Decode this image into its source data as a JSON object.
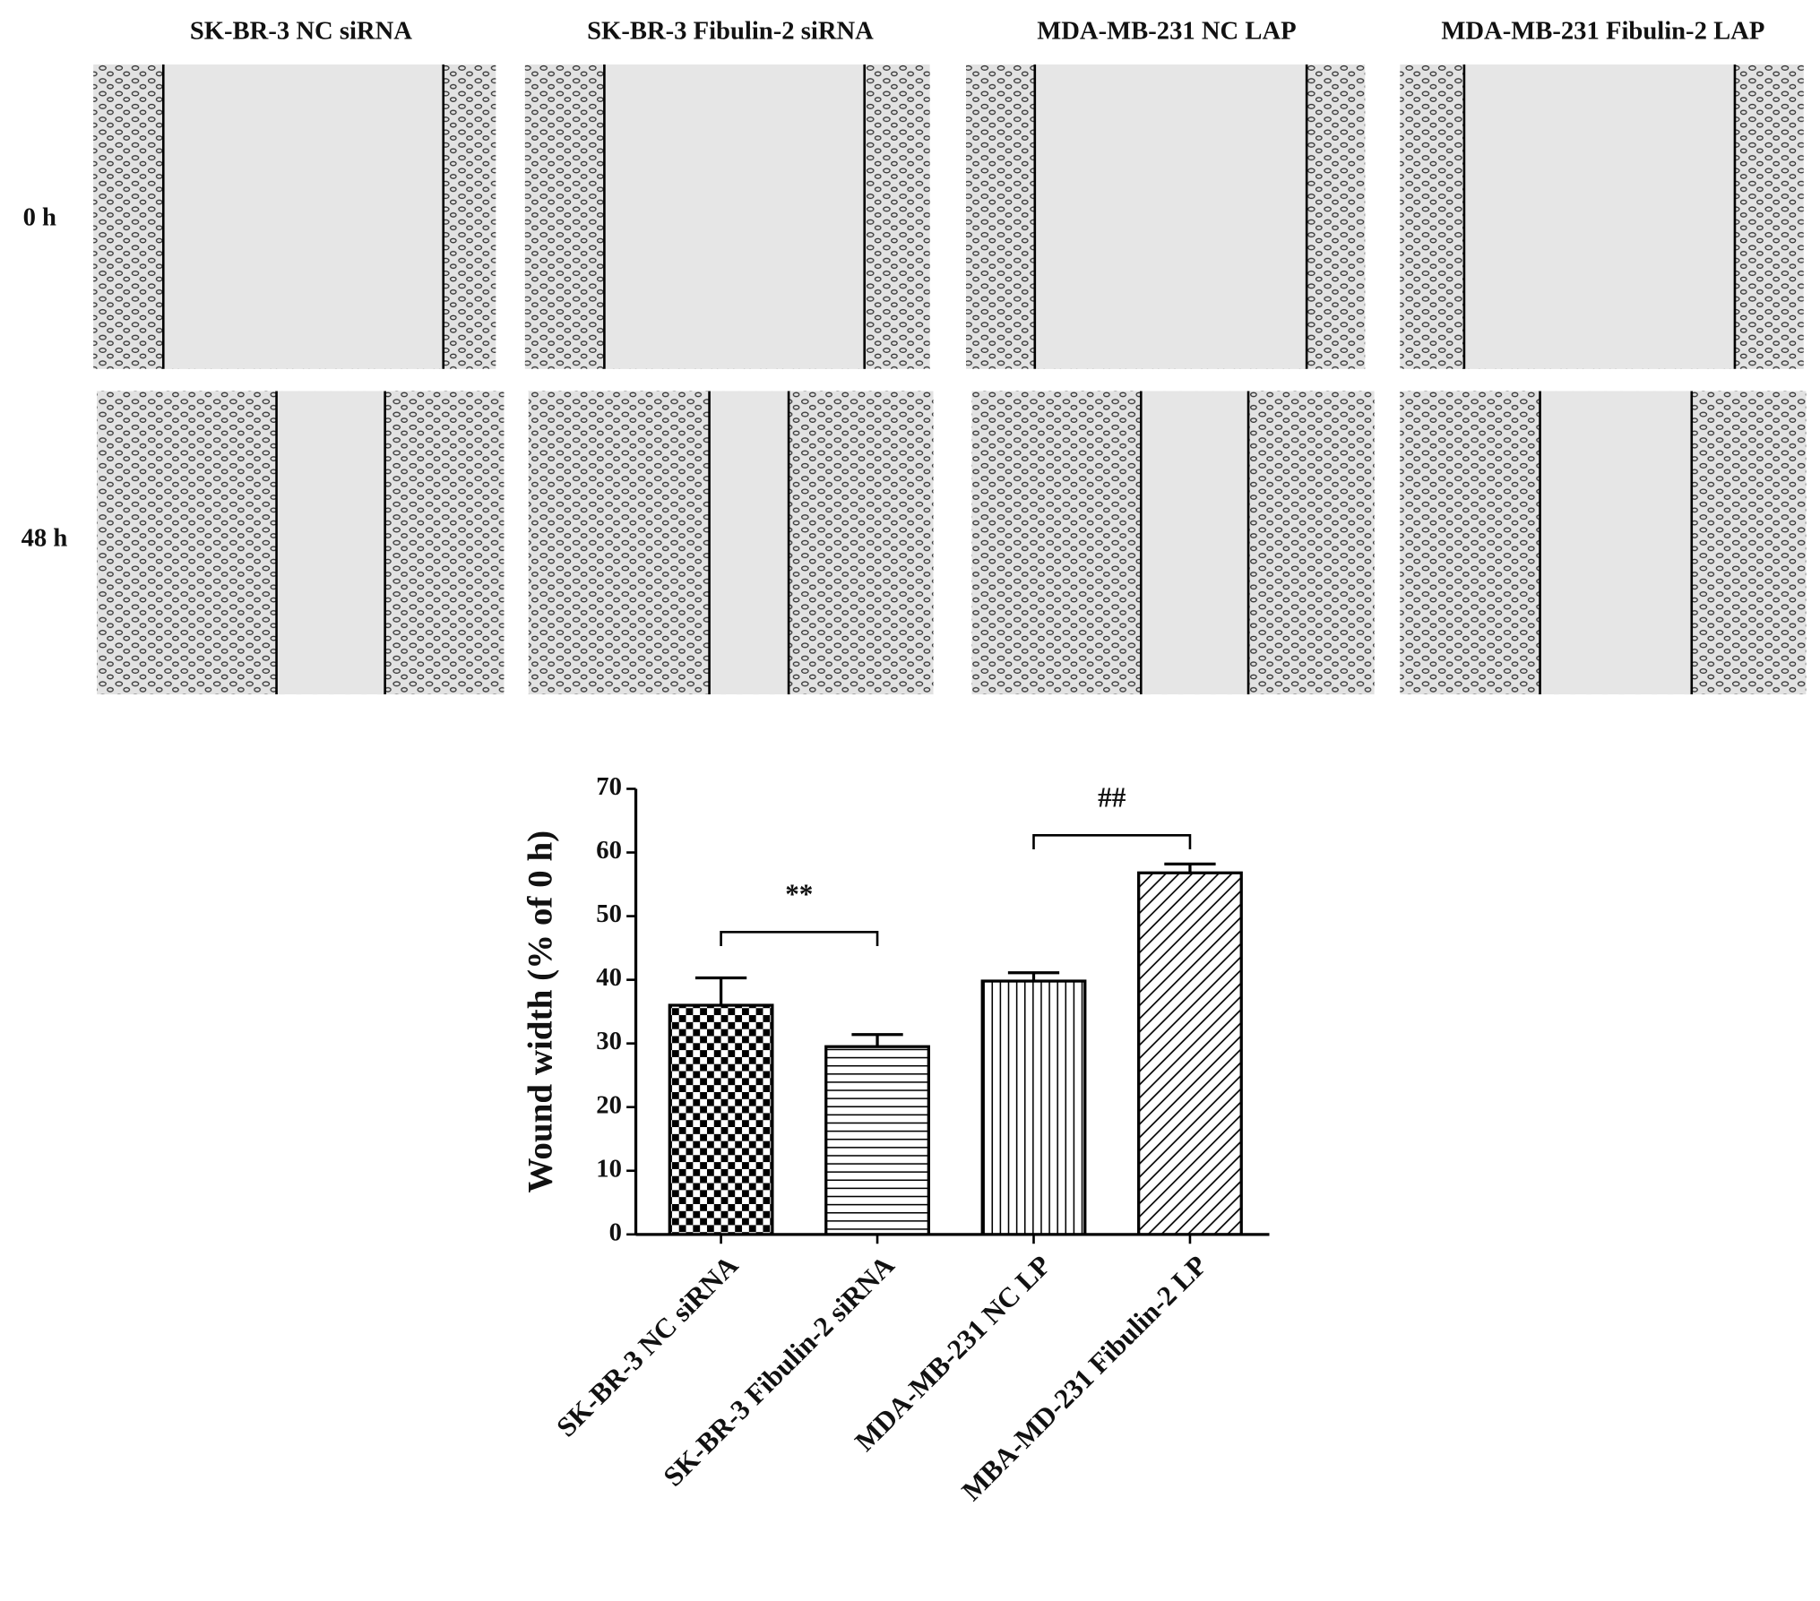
{
  "figure": {
    "column_labels": [
      "SK-BR-3 NC siRNA",
      "SK-BR-3 Fibulin-2 siRNA",
      "MDA-MB-231 NC LAP",
      "MDA-MB-231 Fibulin-2 LAP"
    ],
    "row_labels": [
      "0 h",
      "48 h"
    ]
  },
  "chart_data": {
    "type": "bar",
    "ylabel": "Wound width (% of 0 h)",
    "categories": [
      "SK-BR-3 NC siRNA",
      "SK-BR-3 Fibulin-2 siRNA",
      "MDA-MB-231 NC LP",
      "MBA-MD-231 Fibulin-2 LP"
    ],
    "values": [
      36,
      29.5,
      39.8,
      56.8
    ],
    "errors": [
      4.3,
      1.9,
      1.3,
      1.4
    ],
    "patterns": [
      "checker",
      "horizontal",
      "vertical",
      "diagonal"
    ],
    "color": "#000000",
    "ylim": [
      0,
      70
    ],
    "yticks": [
      0,
      10,
      20,
      30,
      40,
      50,
      60,
      70
    ],
    "annotations": [
      {
        "text": "**",
        "from": 0,
        "to": 1,
        "y": 47.5
      },
      {
        "text": "##",
        "from": 2,
        "to": 3,
        "y": 62.7
      }
    ]
  }
}
